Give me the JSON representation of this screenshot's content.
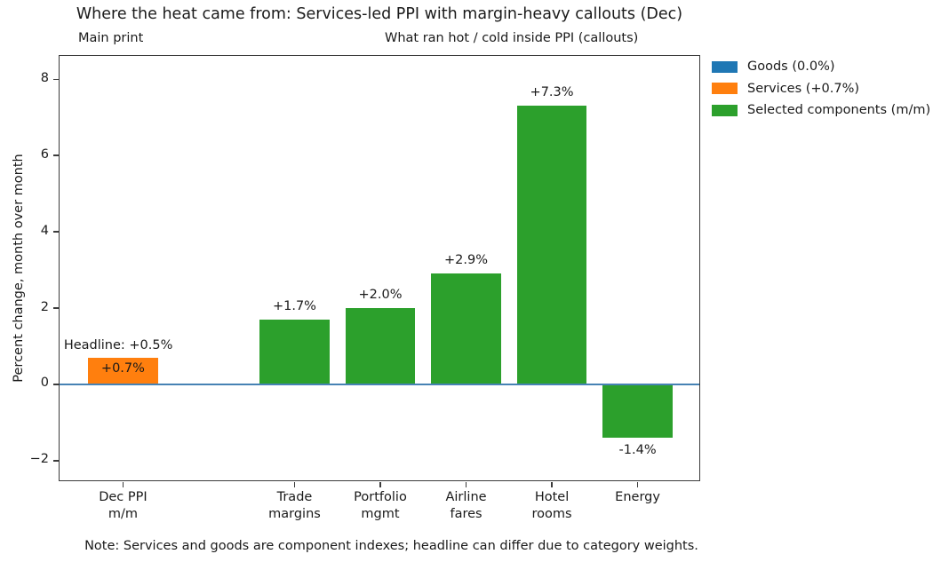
{
  "figure": {
    "panel_labels": {
      "left": "Main print",
      "right": "What ran hot / cold inside PPI (callouts)"
    },
    "note": "Note: Services and goods are component indexes; headline can differ due to category weights."
  },
  "colors": {
    "blue": "#1f77b4",
    "orange": "#ff7f0e",
    "green": "#2ca02c",
    "zero_line": "#4682b4",
    "spine": "#3b3b3b",
    "text": "#1a1a1a"
  },
  "chart_data": {
    "type": "bar",
    "title": "Where the heat came from: Services-led PPI with margin-heavy callouts (Dec)",
    "xlabel": "",
    "ylabel": "Percent change, month over month",
    "grid": false,
    "xlim": [
      -0.74,
      6.74
    ],
    "ylim": [
      -2.56,
      8.61
    ],
    "bar_width": 0.81,
    "zero_line_y": 0,
    "categories": [
      "Dec PPI\nm/m",
      "Trade\nmargins",
      "Portfolio\nmgmt",
      "Airline\nfares",
      "Hotel\nrooms",
      "Energy"
    ],
    "values": [
      0.7,
      1.7,
      2.0,
      2.9,
      7.3,
      -1.4
    ],
    "bars": [
      {
        "category": "Dec PPI\nm/m",
        "position": 0,
        "value": 0.7,
        "value_label": "+0.7%",
        "color_key": "orange",
        "label_placement": "inside"
      },
      {
        "category": "Trade\nmargins",
        "position": 2,
        "value": 1.7,
        "value_label": "+1.7%",
        "color_key": "green",
        "label_placement": "above"
      },
      {
        "category": "Portfolio\nmgmt",
        "position": 3,
        "value": 2.0,
        "value_label": "+2.0%",
        "color_key": "green",
        "label_placement": "above"
      },
      {
        "category": "Airline\nfares",
        "position": 4,
        "value": 2.9,
        "value_label": "+2.9%",
        "color_key": "green",
        "label_placement": "above"
      },
      {
        "category": "Hotel\nrooms",
        "position": 5,
        "value": 7.3,
        "value_label": "+7.3%",
        "color_key": "green",
        "label_placement": "above"
      },
      {
        "category": "Energy",
        "position": 6,
        "value": -1.4,
        "value_label": "-1.4%",
        "color_key": "green",
        "label_placement": "below"
      }
    ],
    "yticks": [
      {
        "value": 8,
        "label": "8"
      },
      {
        "value": 6,
        "label": "6"
      },
      {
        "value": 4,
        "label": "4"
      },
      {
        "value": 2,
        "label": "2"
      },
      {
        "value": 0,
        "label": "0"
      },
      {
        "value": -2,
        "label": "−2"
      }
    ],
    "annotations": [
      {
        "text": "Headline: +0.5%",
        "x": -0.69,
        "y": 1.03
      }
    ],
    "legend": {
      "position": "upper-right-outside",
      "entries": [
        {
          "label": "Goods (0.0%)",
          "color": "#1f77b4"
        },
        {
          "label": "Services (+0.7%)",
          "color": "#ff7f0e"
        },
        {
          "label": "Selected components (m/m)",
          "color": "#2ca02c"
        }
      ]
    }
  }
}
